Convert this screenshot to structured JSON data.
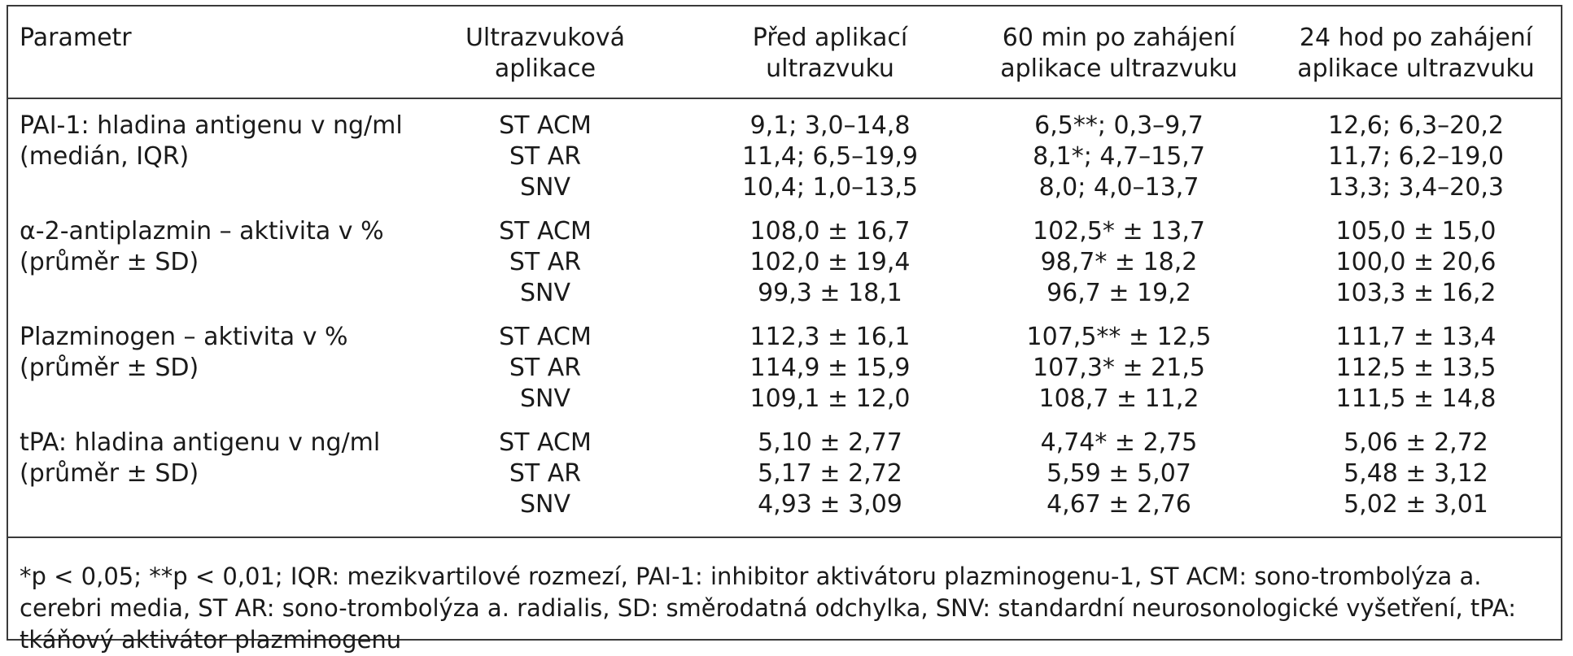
{
  "headers": {
    "parametr": "Parametr",
    "app_line1": "Ultrazvuková",
    "app_line2": "aplikace",
    "before_line1": "Před aplikací",
    "before_line2": "ultrazvuku",
    "m60_line1": "60 min po zahájení",
    "m60_line2": "aplikace ultrazvuku",
    "h24_line1": "24 hod po zahájení",
    "h24_line2": "aplikace ultrazvuku"
  },
  "groups": [
    {
      "param_line1": "PAI-1: hladina antigenu v ng/ml",
      "param_line2": "(medián, IQR)",
      "rows": [
        {
          "app": "ST ACM",
          "before": "9,1; 3,0–14,8",
          "m60": "6,5**; 0,3–9,7",
          "h24": "12,6; 6,3–20,2"
        },
        {
          "app": "ST AR",
          "before": "11,4; 6,5–19,9",
          "m60": "8,1*; 4,7–15,7",
          "h24": "11,7; 6,2–19,0"
        },
        {
          "app": "SNV",
          "before": "10,4; 1,0–13,5",
          "m60": "8,0; 4,0–13,7",
          "h24": "13,3; 3,4–20,3"
        }
      ]
    },
    {
      "param_line1": "α-2-antiplazmin – aktivita v %",
      "param_line2": "(průměr ± SD)",
      "rows": [
        {
          "app": "ST ACM",
          "before": "108,0 ± 16,7",
          "m60": "102,5* ± 13,7",
          "h24": "105,0 ± 15,0"
        },
        {
          "app": "ST AR",
          "before": "102,0 ± 19,4",
          "m60": "98,7* ± 18,2",
          "h24": "100,0 ± 20,6"
        },
        {
          "app": "SNV",
          "before": "99,3 ± 18,1",
          "m60": "96,7 ± 19,2",
          "h24": "103,3 ± 16,2"
        }
      ]
    },
    {
      "param_line1": "Plazminogen – aktivita v %",
      "param_line2": "(průměr ± SD)",
      "rows": [
        {
          "app": "ST ACM",
          "before": "112,3 ± 16,1",
          "m60": "107,5** ± 12,5",
          "h24": "111,7 ± 13,4"
        },
        {
          "app": "ST AR",
          "before": "114,9 ± 15,9",
          "m60": "107,3* ± 21,5",
          "h24": "112,5 ± 13,5"
        },
        {
          "app": "SNV",
          "before": "109,1 ± 12,0",
          "m60": "108,7 ± 11,2",
          "h24": "111,5 ± 14,8"
        }
      ]
    },
    {
      "param_line1": "tPA: hladina antigenu v ng/ml",
      "param_line2": "(průměr ± SD)",
      "rows": [
        {
          "app": "ST ACM",
          "before": "5,10 ± 2,77",
          "m60": "4,74* ± 2,75",
          "h24": "5,06 ± 2,72"
        },
        {
          "app": "ST AR",
          "before": "5,17 ± 2,72",
          "m60": "5,59 ± 5,07",
          "h24": "5,48 ± 3,12"
        },
        {
          "app": "SNV",
          "before": "4,93 ± 3,09",
          "m60": "4,67 ± 2,76",
          "h24": "5,02 ± 3,01"
        }
      ]
    }
  ],
  "footnote": "*p < 0,05; **p < 0,01; IQR: mezikvartilové rozmezí, PAI-1: inhibitor aktivátoru plazminogenu-1, ST ACM: sono-trombolýza a. cerebri media, ST AR: sono-trombolýza a. radialis, SD: směrodatná odchylka, SNV: standardní neurosonologické vyšetření, tPA: tkáňový aktivátor plazminogenu"
}
